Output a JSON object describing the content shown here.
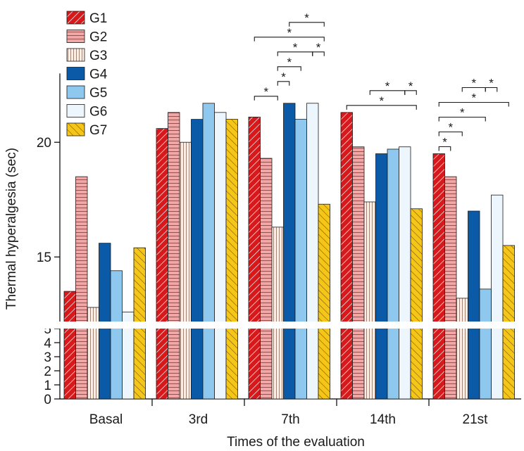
{
  "chart_data": {
    "type": "bar",
    "ylabel": "Thermal hyperalgesia (sec)",
    "xlabel": "Times of the evaluation",
    "categories": [
      "Basal",
      "3rd",
      "7th",
      "14th",
      "21st"
    ],
    "axis_break": {
      "from": 5,
      "to": 12.0
    },
    "ylim": [
      0,
      23.0
    ],
    "yticks_lower": [
      0,
      1,
      2,
      3,
      4,
      5
    ],
    "yticks_upper": [
      15,
      20
    ],
    "series": [
      {
        "name": "G1",
        "color": "#d7191c",
        "pattern": "diag",
        "values": [
          13.5,
          20.6,
          21.1,
          21.3,
          19.5
        ]
      },
      {
        "name": "G2",
        "color": "#f2a7a7",
        "pattern": "horiz",
        "values": [
          18.5,
          21.3,
          19.3,
          19.8,
          18.5
        ]
      },
      {
        "name": "G3",
        "color": "#fbeee6",
        "pattern": "vert",
        "values": [
          12.8,
          20.0,
          16.3,
          17.4,
          13.2
        ]
      },
      {
        "name": "G4",
        "color": "#0a5aa8",
        "pattern": "solid",
        "values": [
          15.6,
          21.0,
          21.7,
          19.5,
          17.0
        ]
      },
      {
        "name": "G5",
        "color": "#8ec8ef",
        "pattern": "solid",
        "values": [
          14.4,
          21.7,
          21.0,
          19.7,
          13.6
        ]
      },
      {
        "name": "G6",
        "color": "#eef6fd",
        "pattern": "solid",
        "values": [
          12.6,
          21.3,
          21.7,
          19.8,
          17.7
        ]
      },
      {
        "name": "G7",
        "color": "#f5c518",
        "pattern": "diag",
        "values": [
          15.4,
          21.0,
          17.3,
          17.1,
          15.5
        ]
      }
    ],
    "significance": [
      {
        "category": 2,
        "from": 0,
        "to": 2,
        "label": "*",
        "level": 0
      },
      {
        "category": 2,
        "from": 2,
        "to": 3,
        "label": "*",
        "level": 1
      },
      {
        "category": 2,
        "from": 2,
        "to": 4,
        "label": "*",
        "level": 2
      },
      {
        "category": 2,
        "from": 2,
        "to": 5,
        "label": "*",
        "level": 3
      },
      {
        "category": 2,
        "from": 5,
        "to": 6,
        "label": "*",
        "level": 3
      },
      {
        "category": 2,
        "from": 0,
        "to": 6,
        "label": "*",
        "level": 4
      },
      {
        "category": 2,
        "from": 3,
        "to": 6,
        "label": "*",
        "level": 5
      },
      {
        "category": 3,
        "from": 0,
        "to": 6,
        "label": "*",
        "level": 0
      },
      {
        "category": 3,
        "from": 2,
        "to": 5,
        "label": "*",
        "level": 1
      },
      {
        "category": 3,
        "from": 5,
        "to": 6,
        "label": "*",
        "level": 1
      },
      {
        "category": 4,
        "from": 0,
        "to": 1,
        "label": "*",
        "level": 0
      },
      {
        "category": 4,
        "from": 0,
        "to": 2,
        "label": "*",
        "level": 1
      },
      {
        "category": 4,
        "from": 0,
        "to": 4,
        "label": "*",
        "level": 2
      },
      {
        "category": 4,
        "from": 0,
        "to": 6,
        "label": "*",
        "level": 3
      },
      {
        "category": 4,
        "from": 2,
        "to": 4,
        "label": "*",
        "level": 4
      },
      {
        "category": 4,
        "from": 4,
        "to": 5,
        "label": "*",
        "level": 4
      }
    ]
  }
}
